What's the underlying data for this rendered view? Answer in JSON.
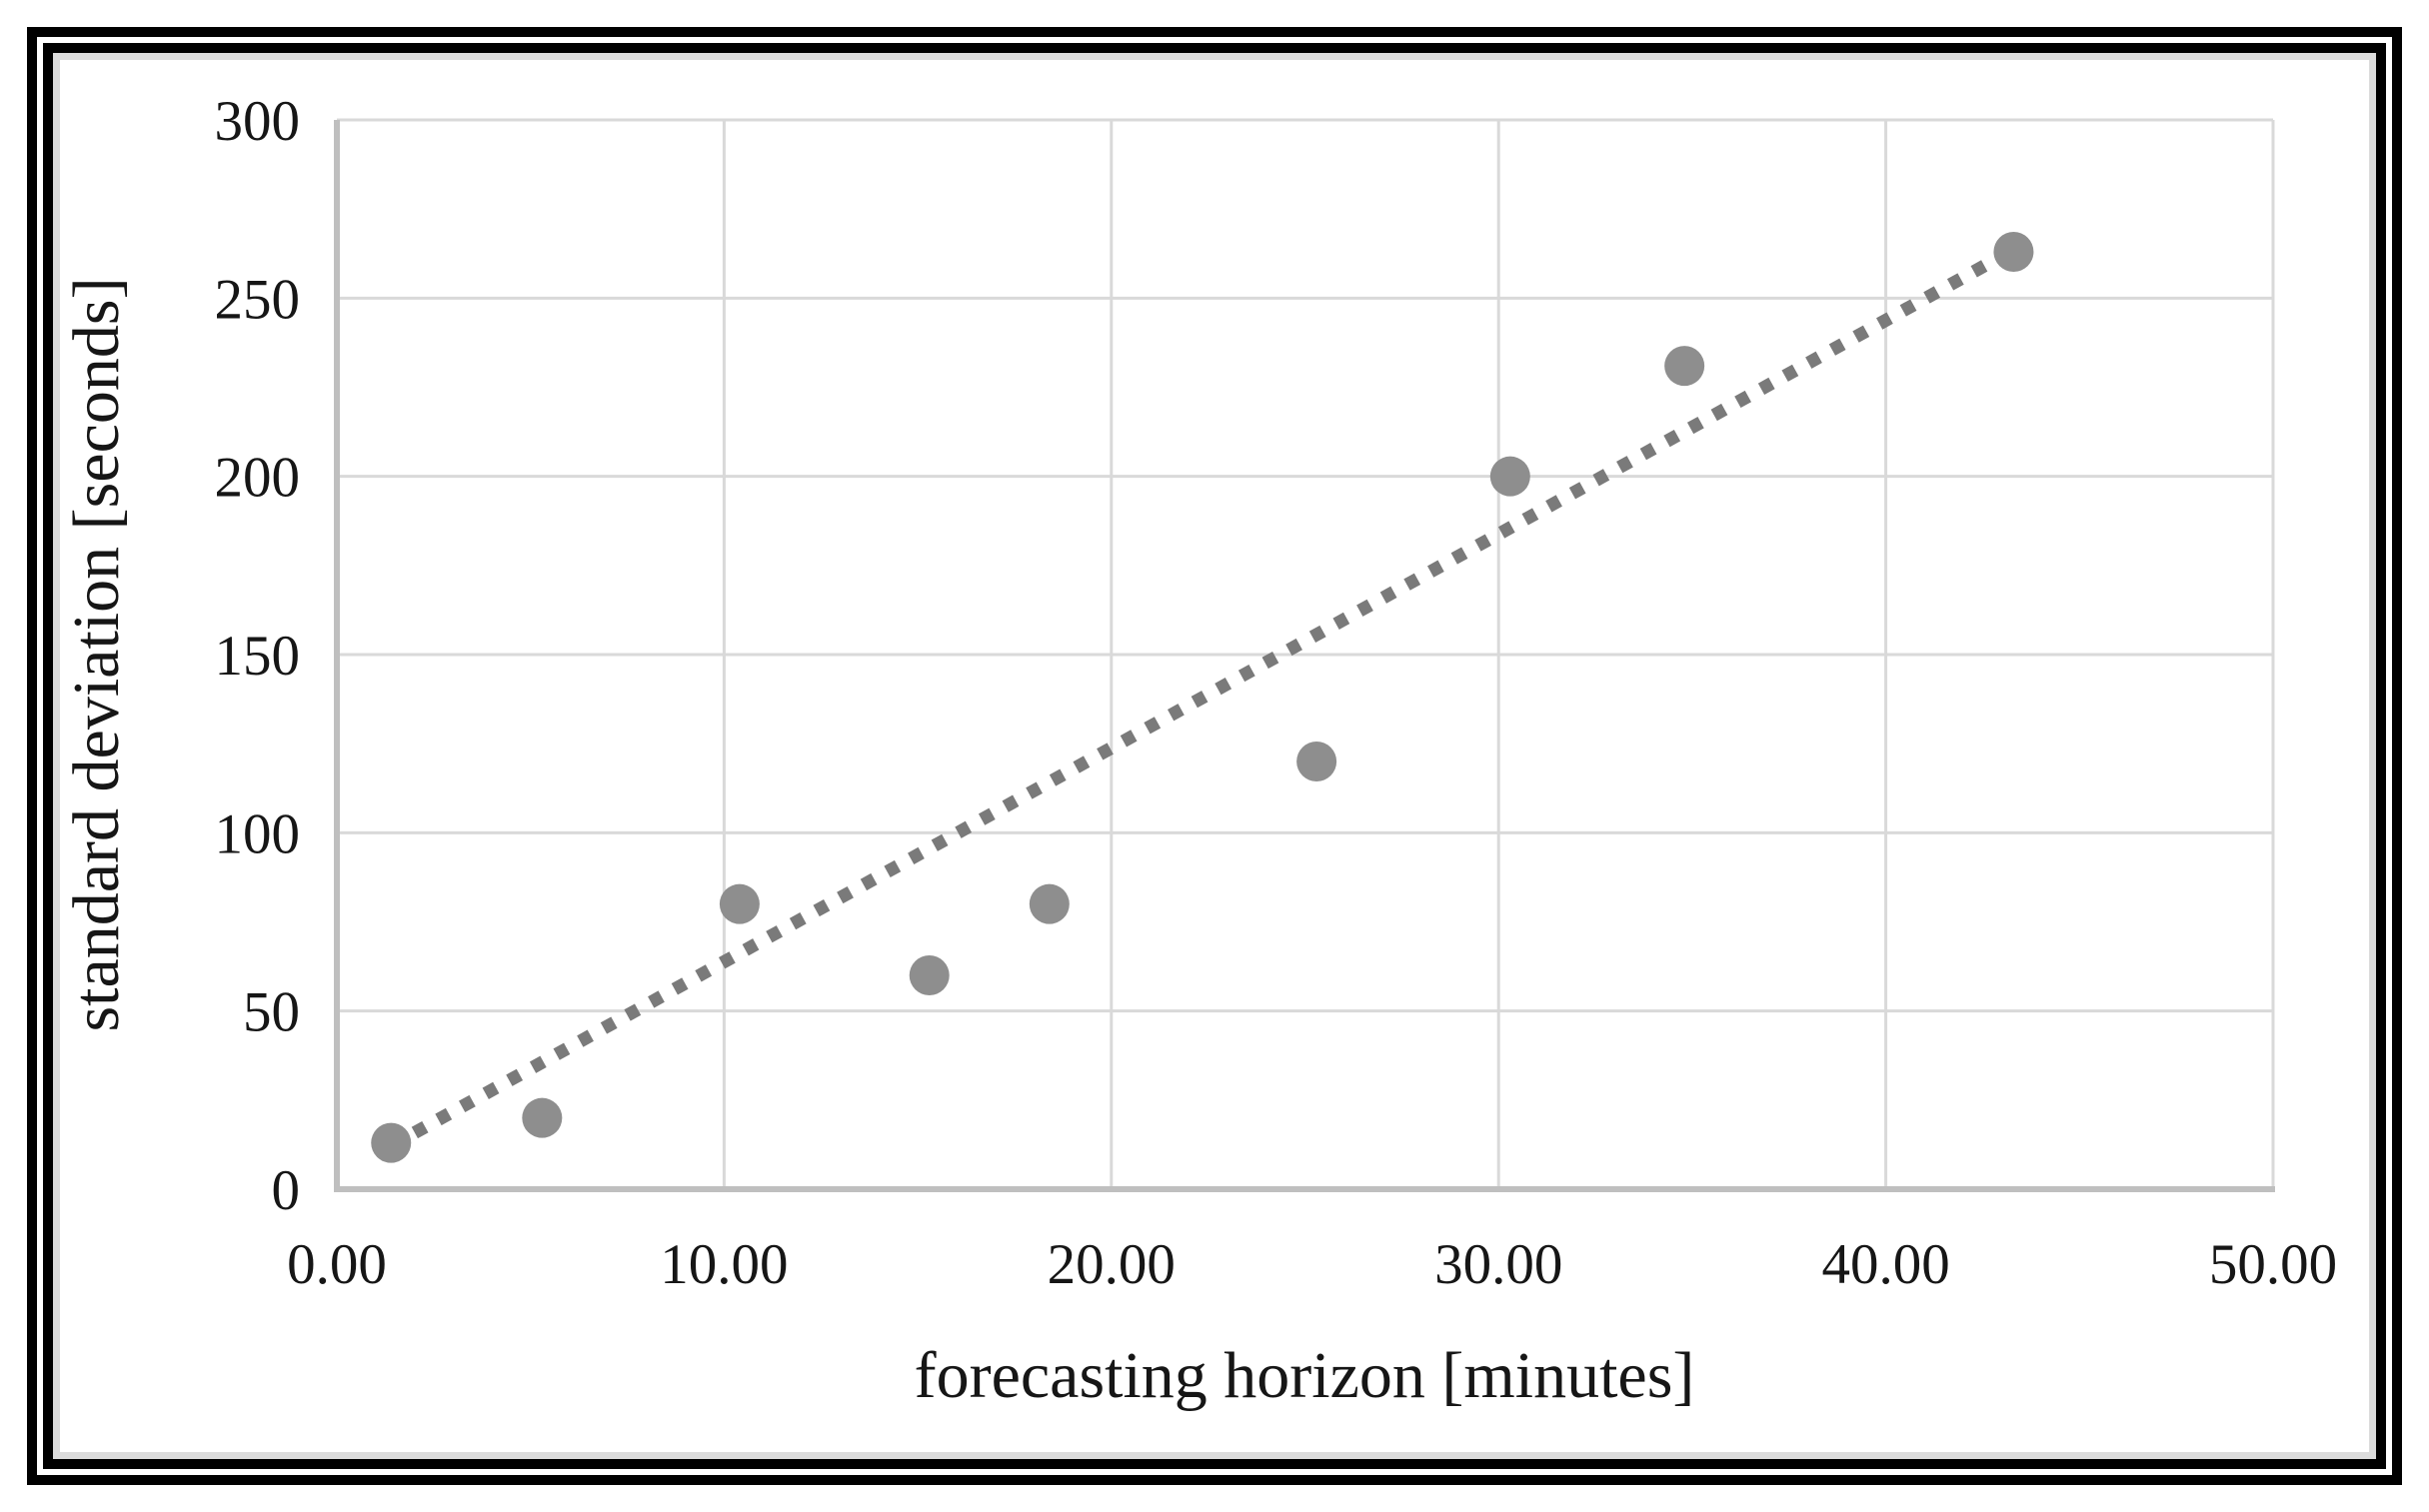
{
  "chart_data": {
    "type": "scatter",
    "title": "",
    "xlabel": "forecasting horizon [minutes]",
    "ylabel": "standard deviation [seconds]",
    "xlim": [
      0,
      50
    ],
    "ylim": [
      0,
      300
    ],
    "grid": true,
    "legend": "none",
    "x_ticks": [
      {
        "value": 0,
        "label": "0.00"
      },
      {
        "value": 10,
        "label": "10.00"
      },
      {
        "value": 20,
        "label": "20.00"
      },
      {
        "value": 30,
        "label": "30.00"
      },
      {
        "value": 40,
        "label": "40.00"
      },
      {
        "value": 50,
        "label": "50.00"
      }
    ],
    "y_ticks": [
      {
        "value": 0,
        "label": "0"
      },
      {
        "value": 50,
        "label": "50"
      },
      {
        "value": 100,
        "label": "100"
      },
      {
        "value": 150,
        "label": "150"
      },
      {
        "value": 200,
        "label": "200"
      },
      {
        "value": 250,
        "label": "250"
      },
      {
        "value": 300,
        "label": "300"
      }
    ],
    "points": [
      {
        "x": 1.4,
        "y": 13
      },
      {
        "x": 5.3,
        "y": 20
      },
      {
        "x": 10.4,
        "y": 80
      },
      {
        "x": 15.3,
        "y": 60
      },
      {
        "x": 18.4,
        "y": 80
      },
      {
        "x": 25.3,
        "y": 120
      },
      {
        "x": 30.3,
        "y": 200
      },
      {
        "x": 34.8,
        "y": 231
      },
      {
        "x": 43.3,
        "y": 263
      }
    ],
    "trendline": {
      "style": "dotted",
      "slope": 6.0,
      "intercept": 3.8,
      "x_start": 1.4,
      "x_end": 43.3
    },
    "colors": {
      "point": "#8e8e8e",
      "trend": "#7a7a7a",
      "gridline": "#d9d9d9",
      "axis_line": "#bfbfbf",
      "text": "#161616",
      "frame": "#000000"
    }
  }
}
